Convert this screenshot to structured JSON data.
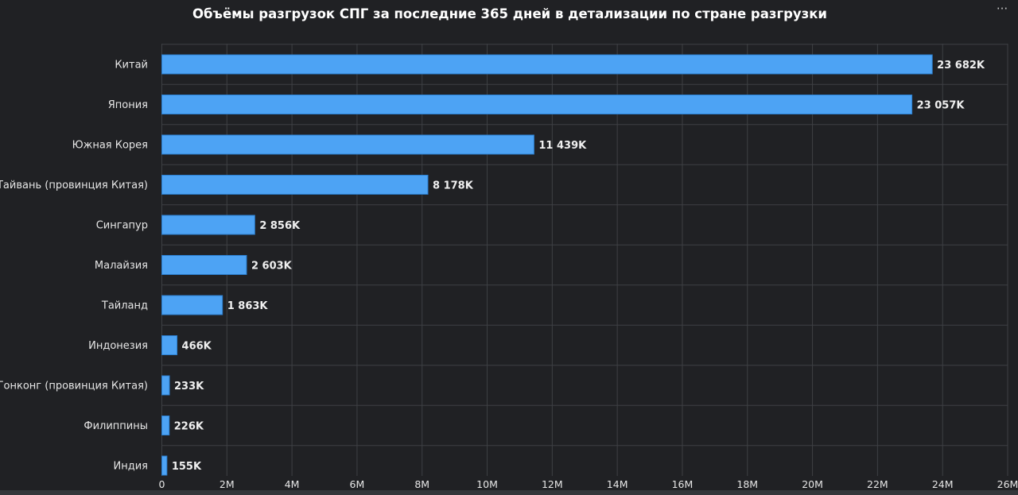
{
  "chart_data": {
    "type": "bar",
    "orientation": "horizontal",
    "title": "Объёмы разгрузок СПГ за последние 365 дней в детализации по стране разгрузки",
    "categories": [
      "Китай",
      "Япония",
      "Южная Корея",
      "Тайвань (провинция Китая)",
      "Сингапур",
      "Малайзия",
      "Тайланд",
      "Индонезия",
      "Гонконг (провинция Китая)",
      "Филиппины",
      "Индия"
    ],
    "values": [
      23682000,
      23057000,
      11439000,
      8178000,
      2856000,
      2603000,
      1863000,
      466000,
      233000,
      226000,
      155000
    ],
    "value_labels": [
      "23 682K",
      "23 057K",
      "11 439K",
      "8 178K",
      "2 856K",
      "2 603K",
      "1 863K",
      "466K",
      "233K",
      "226K",
      "155K"
    ],
    "x_ticks": [
      0,
      2000000,
      4000000,
      6000000,
      8000000,
      10000000,
      12000000,
      14000000,
      16000000,
      18000000,
      20000000,
      22000000,
      24000000,
      26000000
    ],
    "x_tick_labels": [
      "0",
      "2M",
      "4M",
      "6M",
      "8M",
      "10M",
      "12M",
      "14M",
      "16M",
      "18M",
      "20M",
      "22M",
      "24M",
      "26M"
    ],
    "xlim": [
      0,
      26000000
    ],
    "grid": true,
    "legend": "none"
  },
  "colors": {
    "background": "#202124",
    "bar": "#4da3f4",
    "bar_edge": "#2b7fd0",
    "grid": "#3e4044",
    "text": "#e6e6e6",
    "value_label": "#f0f0f0"
  },
  "toolbar": {
    "more_icon": "more-horizontal-icon",
    "more_label": "···"
  }
}
